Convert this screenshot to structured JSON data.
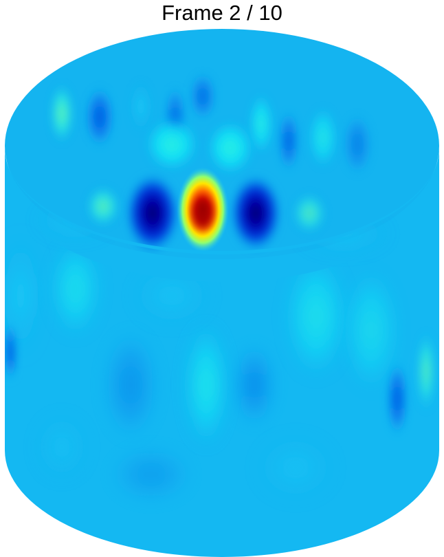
{
  "frame": {
    "title": "Frame 2 / 10",
    "current": 2,
    "total": 10
  },
  "surface": {
    "shape": "cylinder",
    "colormap": "jet",
    "base_color": "#14b4f0",
    "colors": {
      "peak_red": "#c00000",
      "yellow": "#ffe600",
      "dark_blue": "#00008c",
      "cyan": "#00f0ff"
    }
  }
}
